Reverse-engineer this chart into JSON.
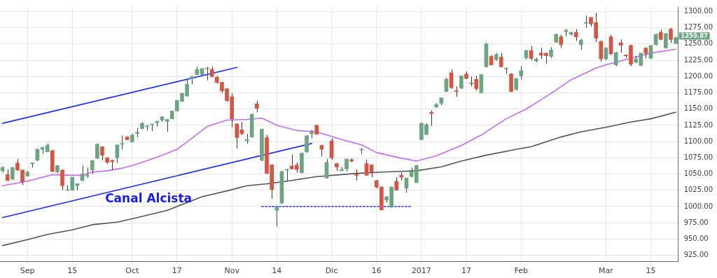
{
  "chart_data": {
    "type": "candlestick",
    "categories": [
      null,
      null,
      null,
      null,
      null,
      "Sep",
      null,
      null,
      null,
      null,
      null,
      null,
      null,
      null,
      "15",
      null,
      null,
      null,
      null,
      null,
      null,
      null,
      null,
      null,
      null,
      null,
      "Oct",
      null,
      null,
      null,
      null,
      null,
      null,
      null,
      null,
      "17",
      null,
      null,
      null,
      null,
      null,
      null,
      null,
      null,
      null,
      null,
      "Nov",
      null,
      null,
      null,
      null,
      null,
      null,
      null,
      null,
      "14",
      null,
      null,
      null,
      null,
      null,
      null,
      null,
      null,
      null,
      null,
      "Dic",
      null,
      null,
      null,
      null,
      null,
      null,
      null,
      null,
      "16",
      null,
      null,
      null,
      null,
      null,
      null,
      null,
      null,
      "2017",
      null,
      null,
      null,
      null,
      null,
      null,
      null,
      null,
      "17",
      null,
      null,
      null,
      null,
      null,
      null,
      null,
      null,
      null,
      null,
      "Feb",
      null,
      null,
      null,
      null,
      null,
      null,
      null,
      null,
      null,
      null,
      null,
      null,
      null,
      null,
      null,
      null,
      "Mar",
      null,
      null,
      null,
      null,
      null,
      null,
      null,
      null,
      "15",
      null,
      null,
      null,
      null,
      null
    ],
    "ylim": [
      915,
      1307
    ],
    "yticks": [
      {
        "value": 925,
        "label": "925.00"
      },
      {
        "value": 950,
        "label": "950.00"
      },
      {
        "value": 975,
        "label": "975.00"
      },
      {
        "value": 1000,
        "label": "1000.00"
      },
      {
        "value": 1025,
        "label": "1025.00"
      },
      {
        "value": 1050,
        "label": "1050.00"
      },
      {
        "value": 1075,
        "label": "1075.00"
      },
      {
        "value": 1100,
        "label": "1100.00"
      },
      {
        "value": 1125,
        "label": "1125.00"
      },
      {
        "value": 1150,
        "label": "1150.00"
      },
      {
        "value": 1175,
        "label": "1175.00"
      },
      {
        "value": 1200,
        "label": "1200.00"
      },
      {
        "value": 1225,
        "label": "1225.00"
      },
      {
        "value": 1250,
        "label": "1250.00"
      },
      {
        "value": 1275,
        "label": "1275.00"
      },
      {
        "value": 1300,
        "label": "1300.00"
      }
    ],
    "grid": true,
    "marker": "none",
    "series": [
      {
        "type": "line",
        "color": "#c56cf0",
        "values": [
          1032,
          null,
          null,
          null,
          null,
          1039,
          null,
          null,
          null,
          null,
          1049,
          null,
          null,
          null,
          1048,
          null,
          1048,
          null,
          1053,
          null,
          null,
          1055,
          null,
          null,
          1059,
          null,
          1063,
          null,
          1068,
          null,
          null,
          1076,
          null,
          null,
          null,
          1088,
          null,
          null,
          1105,
          null,
          null,
          1123,
          null,
          null,
          null,
          1133,
          null,
          null,
          null,
          1134,
          null,
          null,
          1136,
          null,
          1129,
          1125,
          null,
          null,
          null,
          1117,
          null,
          null,
          null,
          1115,
          null,
          null,
          null,
          null,
          1103,
          null,
          null,
          null,
          1095,
          null,
          null,
          1083,
          null,
          null,
          null,
          1076,
          null,
          null,
          null,
          1070,
          null,
          null,
          null,
          1078,
          null,
          null,
          null,
          null,
          1094,
          null,
          null,
          null,
          1110,
          null,
          null,
          null,
          null,
          1135,
          null,
          null,
          null,
          1150,
          null,
          null,
          null,
          null,
          1174,
          null,
          null,
          null,
          1195,
          null,
          null,
          null,
          null,
          1213,
          null,
          1218,
          null,
          null,
          null,
          null,
          1228,
          null,
          null,
          null,
          1236,
          null,
          null,
          null,
          null,
          1242
        ]
      },
      {
        "type": "line",
        "color": "#555555",
        "values": [
          940,
          null,
          null,
          null,
          null,
          949,
          null,
          null,
          null,
          957,
          null,
          null,
          null,
          null,
          964,
          null,
          null,
          null,
          972,
          null,
          null,
          null,
          null,
          976,
          null,
          null,
          null,
          983,
          null,
          null,
          null,
          null,
          null,
          994,
          null,
          null,
          null,
          null,
          null,
          null,
          1015,
          null,
          null,
          null,
          null,
          1024,
          null,
          null,
          null,
          1032,
          null,
          null,
          null,
          1035,
          null,
          null,
          null,
          1039,
          null,
          null,
          null,
          null,
          null,
          1046,
          null,
          null,
          null,
          null,
          null,
          null,
          null,
          1051,
          null,
          null,
          null,
          null,
          1053,
          null,
          null,
          null,
          1054,
          null,
          null,
          1055,
          null,
          null,
          null,
          null,
          1061,
          null,
          null,
          null,
          1070,
          null,
          null,
          null,
          null,
          1079,
          null,
          null,
          null,
          null,
          null,
          1088,
          null,
          null,
          1092,
          null,
          null,
          null,
          null,
          null,
          1107,
          null,
          null,
          null,
          1115,
          null,
          null,
          null,
          null,
          1122,
          null,
          null,
          null,
          null,
          1130,
          null,
          null,
          null,
          1135,
          null,
          null,
          null,
          null,
          1145
        ]
      },
      {
        "type": "line",
        "color": "#1f2fef",
        "values": [
          1128,
          null,
          null,
          null,
          null,
          null,
          null,
          null,
          null,
          null,
          null,
          null,
          null,
          null,
          null,
          null,
          null,
          null,
          null,
          null,
          null,
          null,
          null,
          null,
          null,
          null,
          null,
          null,
          null,
          null,
          null,
          null,
          null,
          null,
          null,
          null,
          null,
          null,
          null,
          null,
          null,
          null,
          null,
          null,
          null,
          null,
          null,
          1214,
          null,
          null,
          null,
          null,
          null,
          null,
          null,
          null,
          null,
          null,
          null,
          null,
          null,
          null,
          null,
          null,
          null,
          null,
          null,
          null,
          null,
          null,
          null,
          null,
          null,
          null,
          null,
          null,
          null,
          null,
          null,
          null,
          null,
          null,
          null,
          null,
          null,
          null,
          null,
          null,
          null,
          null,
          null,
          null,
          null,
          null,
          null,
          null,
          null,
          null,
          null,
          null,
          null,
          null,
          null,
          null,
          null,
          null,
          null,
          null,
          null,
          null,
          null,
          null,
          null,
          null,
          null,
          null,
          null,
          null,
          null,
          null,
          null,
          null,
          null,
          null,
          null,
          null,
          null,
          null,
          null,
          null,
          null,
          null,
          null,
          null,
          null,
          null
        ]
      },
      {
        "type": "line",
        "color": "#1f2fef",
        "values": [
          983,
          null,
          null,
          null,
          null,
          null,
          null,
          null,
          null,
          null,
          null,
          null,
          null,
          null,
          null,
          null,
          null,
          null,
          null,
          null,
          null,
          null,
          null,
          null,
          null,
          null,
          null,
          null,
          null,
          null,
          null,
          null,
          null,
          null,
          null,
          null,
          null,
          null,
          null,
          null,
          null,
          null,
          null,
          null,
          null,
          null,
          null,
          null,
          null,
          null,
          null,
          null,
          null,
          null,
          null,
          null,
          null,
          null,
          null,
          null,
          null,
          null,
          1097,
          null,
          null,
          null,
          null,
          null,
          null,
          null,
          null,
          null,
          null,
          null,
          null,
          null,
          null,
          null,
          null,
          null,
          null,
          null,
          null,
          null,
          null,
          null,
          null,
          null,
          null,
          null,
          null,
          null,
          null,
          null,
          null,
          null,
          null,
          null,
          null,
          null,
          null,
          null,
          null,
          null,
          null,
          null,
          null,
          null,
          null,
          null,
          null,
          null,
          null,
          null,
          null,
          null,
          null,
          null,
          null,
          null,
          null,
          null,
          null,
          null,
          null,
          null,
          null,
          null,
          null,
          null,
          null,
          null,
          null,
          null,
          null,
          null
        ]
      },
      {
        "type": "line",
        "color": "#3344ff",
        "line_style": "dotted",
        "values": [
          null,
          null,
          null,
          null,
          null,
          null,
          null,
          null,
          null,
          null,
          null,
          null,
          null,
          null,
          null,
          null,
          null,
          null,
          null,
          null,
          null,
          null,
          null,
          null,
          null,
          null,
          null,
          null,
          null,
          null,
          null,
          null,
          null,
          null,
          null,
          null,
          null,
          null,
          null,
          null,
          null,
          null,
          null,
          null,
          null,
          null,
          null,
          null,
          null,
          null,
          null,
          null,
          1000,
          null,
          null,
          null,
          null,
          null,
          null,
          null,
          null,
          null,
          null,
          null,
          null,
          null,
          null,
          null,
          null,
          null,
          null,
          null,
          null,
          null,
          null,
          null,
          null,
          null,
          null,
          null,
          null,
          null,
          1000,
          null,
          null,
          null,
          null,
          null,
          null,
          null,
          null,
          null,
          null,
          null,
          null,
          null,
          null,
          null,
          null,
          null,
          null,
          null,
          null,
          null,
          null,
          null,
          null,
          null,
          null,
          null,
          null,
          null,
          null,
          null,
          null,
          null,
          null,
          null,
          null,
          null,
          null,
          null,
          null,
          null,
          null,
          null,
          null,
          null,
          null,
          null,
          null,
          null,
          null,
          null,
          null,
          null
        ]
      },
      {
        "colors": [
          "#6ba583",
          "#d75442",
          "#6ba583",
          "#d75442",
          "#d75442",
          "#6ba583",
          "#6ba583",
          "#6ba583",
          "#6ba583",
          "#6ba583",
          "#d75442",
          "#6ba583",
          "#d75442",
          "#6ba583",
          "#6ba583",
          "#6ba583",
          "#6ba583",
          "#6ba583",
          "#6ba583",
          "#6ba583",
          "#d75442",
          "#d75442",
          "#d75442",
          "#6ba583",
          "#6ba583",
          "#d75442",
          "#6ba583",
          "#6ba583",
          "#6ba583",
          "#6ba583",
          "#6ba583",
          "#6ba583",
          "#6ba583",
          "#6ba583",
          "#6ba583",
          "#6ba583",
          "#6ba583",
          "#6ba583",
          "#6ba583",
          "#6ba583",
          "#6ba583",
          "#6ba583",
          "#d75442",
          "#d75442",
          "#d75442",
          "#d75442",
          "#d75442",
          "#d75442",
          "#d75442",
          "#6ba583",
          "#6ba583",
          "#d75442",
          "#6ba583",
          "#d75442",
          "#d75442",
          "#6ba583",
          "#6ba583",
          "#6ba583",
          "#d75442",
          "#d75442",
          "#6ba583",
          "#6ba583",
          "#6ba583",
          "#d75442",
          "#d75442",
          "#6ba583",
          "#d75442",
          "#d75442",
          "#6ba583",
          "#6ba583",
          "#d75442",
          "#d75442",
          "#6ba583",
          "#d75442",
          "#d75442",
          "#d75442",
          "#d75442",
          "#6ba583",
          "#6ba583",
          "#d75442",
          "#d75442",
          "#6ba583",
          "#6ba583",
          "#6ba583",
          "#6ba583",
          "#6ba583",
          "#d75442",
          "#6ba583",
          "#6ba583",
          "#6ba583",
          "#d75442",
          "#d75442",
          "#6ba583",
          "#d75442",
          "#d75442",
          "#d75442",
          "#6ba583",
          "#6ba583",
          "#d75442",
          "#6ba583",
          "#d75442",
          "#6ba583",
          "#d75442",
          "#6ba583",
          "#6ba583",
          "#6ba583",
          "#d75442",
          "#6ba583",
          "#d75442",
          "#d75442",
          "#6ba583",
          "#6ba583",
          "#d75442",
          "#6ba583",
          "#6ba583",
          "#d75442",
          "#6ba583",
          "#6ba583",
          "#d75442",
          "#d75442",
          "#d75442",
          "#6ba583",
          "#d75442",
          "#6ba583",
          "#d75442",
          "#d75442",
          "#d75442",
          "#6ba583",
          "#6ba583",
          "#d75442",
          "#6ba583",
          "#6ba583",
          "#d75442",
          "#6ba583",
          "#d75442",
          "#6ba583"
        ],
        "ohlc": [
          [
            1055,
            1062,
            1052,
            1060
          ],
          [
            1049,
            1057,
            1039,
            1040
          ],
          [
            1042,
            1061,
            1041,
            1060
          ],
          [
            1067,
            1073,
            1055,
            1056
          ],
          [
            1056,
            1057,
            1033,
            1038
          ],
          [
            1047,
            1055,
            1046,
            1053
          ],
          [
            1066,
            1068,
            1060,
            1067
          ],
          [
            1071,
            1089,
            1070,
            1088
          ],
          [
            1088,
            1092,
            1081,
            1091
          ],
          [
            1084,
            1097,
            1084,
            1094
          ],
          [
            1086,
            1087,
            1053,
            1054
          ],
          [
            1053,
            1063,
            1051,
            1063
          ],
          [
            1056,
            1057,
            1025,
            1032
          ],
          [
            1025,
            1033,
            1024,
            1025.5
          ],
          [
            1025,
            1045,
            1025,
            1045
          ],
          [
            1032,
            1035,
            1025,
            1035
          ],
          [
            1040,
            1063,
            1039,
            1050
          ],
          [
            1047,
            1060,
            1044,
            1048
          ],
          [
            1056,
            1071,
            1050,
            1071
          ],
          [
            1074,
            1097,
            1073,
            1096
          ],
          [
            1092,
            1093,
            1071,
            1079
          ],
          [
            1075,
            1076,
            1066,
            1068
          ],
          [
            1071,
            1072,
            1056,
            1069
          ],
          [
            1075,
            1095,
            1067,
            1095
          ],
          [
            1096,
            1109,
            1088,
            1097
          ],
          [
            1107,
            1108,
            1102,
            1103
          ],
          [
            1099,
            1112,
            1099,
            1110
          ],
          [
            1112,
            1121,
            1107,
            1114
          ],
          [
            1120,
            1130,
            1119,
            1128
          ],
          [
            1123,
            1125,
            1117,
            1124
          ],
          [
            1126,
            1127,
            1116,
            1127
          ],
          [
            1129,
            1132,
            1123,
            1131
          ],
          [
            1133,
            1139,
            1130,
            1138
          ],
          [
            1131,
            1134,
            1115,
            1134
          ],
          [
            1135,
            1147,
            1134,
            1147
          ],
          [
            1147,
            1164,
            1146,
            1163
          ],
          [
            1162,
            1175,
            1161,
            1174
          ],
          [
            1170,
            1195,
            1169,
            1188
          ],
          [
            1197,
            1201,
            1188,
            1200
          ],
          [
            1203,
            1215,
            1202,
            1211
          ],
          [
            1203,
            1213,
            1202,
            1212
          ],
          [
            1212,
            1215,
            1194,
            1213
          ],
          [
            1211,
            1215,
            1199,
            1200
          ],
          [
            1199,
            1201,
            1189,
            1191
          ],
          [
            1191,
            1192,
            1175,
            1178
          ],
          [
            1181,
            1182,
            1161,
            1163
          ],
          [
            1169,
            1174,
            1122,
            1135
          ],
          [
            1127,
            1128,
            1089,
            1106
          ],
          [
            1118,
            1130,
            1110,
            1112
          ],
          [
            1101,
            1112,
            1097,
            1103
          ],
          [
            1107,
            1143,
            1106,
            1142
          ],
          [
            1158,
            1163,
            1145,
            1151
          ],
          [
            1071,
            1120,
            1070,
            1119
          ],
          [
            1106,
            1110,
            1050,
            1051
          ],
          [
            1064,
            1065,
            1012,
            1026
          ],
          [
            994,
            1000,
            969,
            1000
          ],
          [
            1005,
            1055,
            1004,
            1054
          ],
          [
            1056,
            1058,
            1039,
            1057
          ],
          [
            1062,
            1080,
            1057,
            1058
          ],
          [
            1064,
            1068,
            1052,
            1057
          ],
          [
            1052,
            1083,
            1051,
            1082
          ],
          [
            1084,
            1110,
            1083,
            1109
          ],
          [
            1112,
            1118,
            1105,
            1115
          ],
          [
            1125,
            1126,
            1111,
            1111
          ],
          [
            1094,
            1095,
            1077,
            1088
          ],
          [
            1044,
            1073,
            1043,
            1068
          ],
          [
            1101,
            1105,
            1072,
            1075
          ],
          [
            1066,
            1067,
            1055,
            1061
          ],
          [
            1055,
            1061,
            1055,
            1057
          ],
          [
            1058,
            1073,
            1054,
            1073
          ],
          [
            1072,
            1074,
            1068,
            1070
          ],
          [
            1050,
            1057,
            1040,
            1048
          ],
          [
            1087,
            1090,
            1081,
            1088
          ],
          [
            1066,
            1072,
            1048,
            1048
          ],
          [
            1064,
            1065,
            1045,
            1053
          ],
          [
            1040,
            1041,
            1028,
            1030
          ],
          [
            1030,
            1031,
            994,
            995
          ],
          [
            1010,
            1016,
            1006,
            1015
          ],
          [
            999,
            1031,
            998,
            1030
          ],
          [
            1039,
            1045,
            1025,
            1025
          ],
          [
            1048,
            1052,
            1040,
            1045
          ],
          [
            1028,
            1044,
            1021,
            1044
          ],
          [
            1046,
            1060,
            1045,
            1054
          ],
          [
            1037,
            1064,
            1036,
            1063
          ],
          [
            1103,
            1129,
            1102,
            1128
          ],
          [
            1111,
            1128,
            1110,
            1126
          ],
          [
            1145,
            1148,
            1124,
            1143
          ],
          [
            1153,
            1159,
            1152,
            1157
          ],
          [
            1159,
            1168,
            1156,
            1167
          ],
          [
            1177,
            1198,
            1176,
            1196
          ],
          [
            1206,
            1211,
            1181,
            1183
          ],
          [
            1178,
            1185,
            1169,
            1177
          ],
          [
            1182,
            1201,
            1181,
            1201
          ],
          [
            1204,
            1208,
            1196,
            1197
          ],
          [
            1190,
            1200,
            1185,
            1189
          ],
          [
            1196,
            1201,
            1178,
            1181
          ],
          [
            1175,
            1204,
            1174,
            1203
          ],
          [
            1215,
            1252,
            1214,
            1250
          ],
          [
            1231,
            1233,
            1217,
            1218
          ],
          [
            1226,
            1236,
            1224,
            1234
          ],
          [
            1230,
            1236,
            1214,
            1215
          ],
          [
            1212,
            1214,
            1204,
            1213
          ],
          [
            1204,
            1205,
            1176,
            1177
          ],
          [
            1180,
            1197,
            1179,
            1197
          ],
          [
            1201,
            1216,
            1196,
            1209
          ],
          [
            1229,
            1241,
            1226,
            1240
          ],
          [
            1240,
            1247,
            1225,
            1228
          ],
          [
            1224,
            1229,
            1222,
            1227
          ],
          [
            1236,
            1244,
            1227,
            1233
          ],
          [
            1236,
            1237,
            1220,
            1232
          ],
          [
            1231,
            1245,
            1229,
            1241
          ],
          [
            1253,
            1266,
            1252,
            1265
          ],
          [
            1261,
            1264,
            1244,
            1249
          ],
          [
            1269,
            1273,
            1262,
            1271
          ],
          [
            1265,
            1269,
            1263,
            1268
          ],
          [
            1268,
            1273,
            1255,
            1261
          ],
          [
            1249,
            1258,
            1241,
            1256
          ],
          [
            1282,
            1294,
            1275,
            1283
          ],
          [
            1291,
            1291,
            1277,
            1281
          ],
          [
            1283,
            1298,
            1253,
            1259
          ],
          [
            1254,
            1255,
            1223,
            1227
          ],
          [
            1227,
            1245,
            1225,
            1244
          ],
          [
            1261,
            1264,
            1233,
            1235
          ],
          [
            1218,
            1238,
            1216,
            1237
          ],
          [
            1252,
            1257,
            1237,
            1248
          ],
          [
            1233,
            1234,
            1229,
            1232
          ],
          [
            1248,
            1249,
            1216,
            1219
          ],
          [
            1222,
            1232,
            1221,
            1227
          ],
          [
            1217,
            1236,
            1216,
            1236
          ],
          [
            1244,
            1245,
            1228,
            1236
          ],
          [
            1228,
            1248,
            1227,
            1248
          ],
          [
            1249,
            1266,
            1248,
            1265
          ],
          [
            1268,
            1272,
            1256,
            1257
          ],
          [
            1244,
            1267,
            1243,
            1266
          ],
          [
            1273,
            1275,
            1252,
            1257
          ],
          [
            1251,
            1261,
            1250,
            1259.87
          ]
        ]
      }
    ],
    "annotations": [
      "Canal Alcista",
      "1259.87"
    ]
  }
}
